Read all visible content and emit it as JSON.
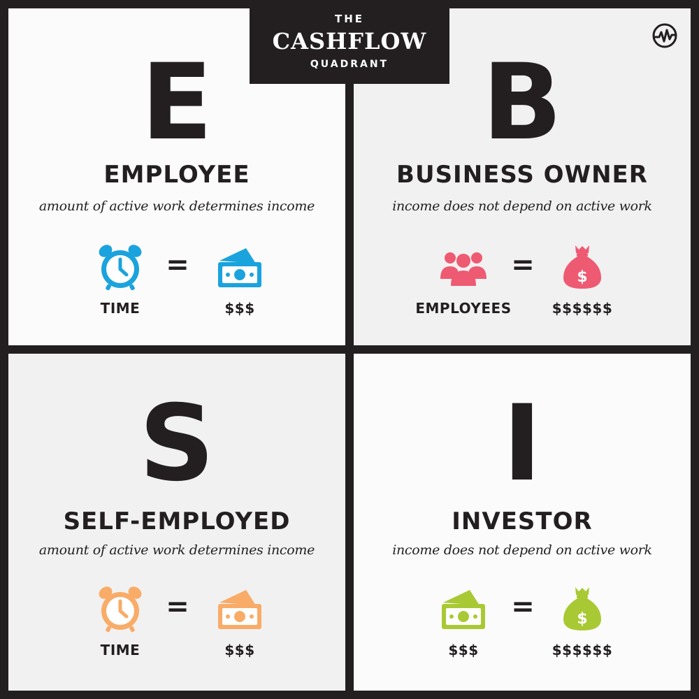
{
  "header": {
    "line1": "THE",
    "title": "CASHFLOW",
    "line3": "QUADRANT",
    "logo_icon": "wealth-pulse-icon"
  },
  "colors": {
    "dark": "#231f20",
    "blue": "#1ba3dd",
    "pink": "#ee5a72",
    "orange": "#f8ac68",
    "green": "#a9c934"
  },
  "quadrants": [
    {
      "letter": "E",
      "title": "EMPLOYEE",
      "subtitle": "amount of active work determines income",
      "left_icon": "alarm-clock-icon",
      "left_label": "TIME",
      "operator": "=",
      "right_icon": "cash-icon",
      "right_label": "$$$",
      "accent": "#1ba3dd"
    },
    {
      "letter": "B",
      "title": "BUSINESS OWNER",
      "subtitle": "income does not depend on active work",
      "left_icon": "people-group-icon",
      "left_label": "EMPLOYEES",
      "operator": "=",
      "right_icon": "money-bag-icon",
      "right_label": "$$$$$$",
      "accent": "#ee5a72"
    },
    {
      "letter": "S",
      "title": "SELF-EMPLOYED",
      "subtitle": "amount of active work determines income",
      "left_icon": "alarm-clock-icon",
      "left_label": "TIME",
      "operator": "=",
      "right_icon": "cash-icon",
      "right_label": "$$$",
      "accent": "#f8ac68"
    },
    {
      "letter": "I",
      "title": "INVESTOR",
      "subtitle": "income does not depend on active work",
      "left_icon": "cash-icon",
      "left_label": "$$$",
      "operator": "=",
      "right_icon": "money-bag-icon",
      "right_label": "$$$$$$",
      "accent": "#a9c934"
    }
  ]
}
